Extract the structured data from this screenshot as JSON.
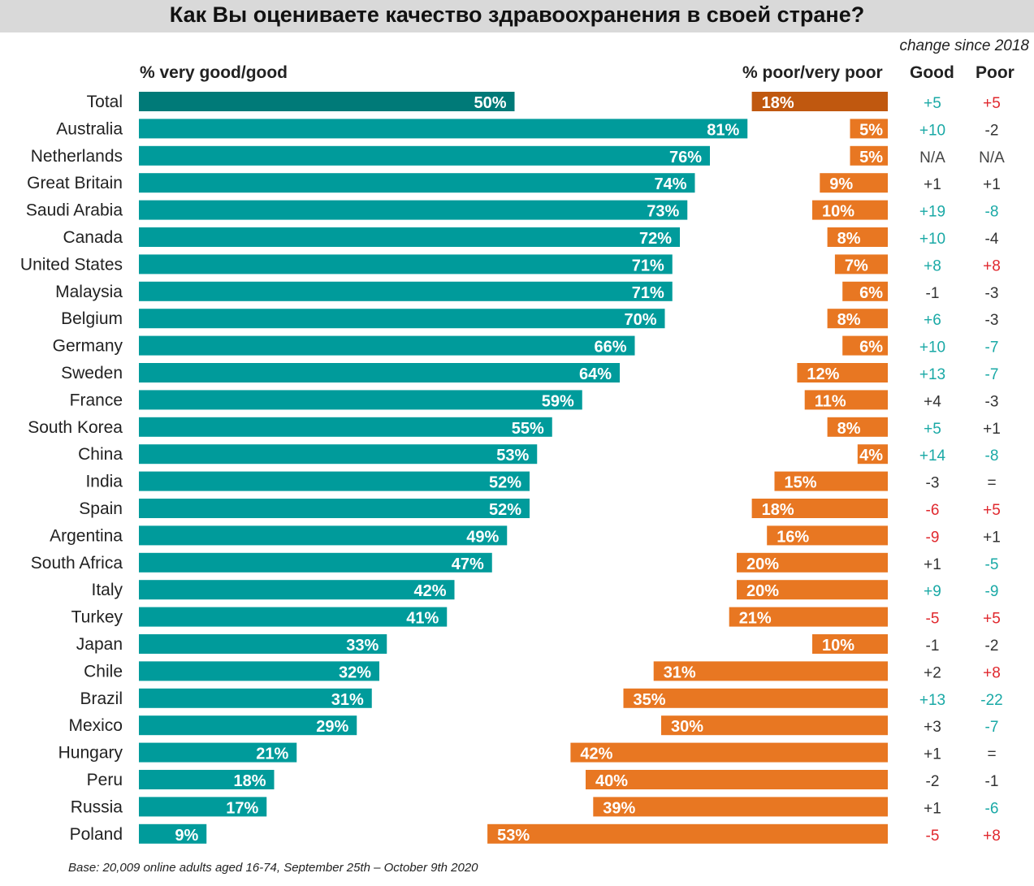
{
  "title": "Как Вы оцениваете качество здравоохранения в своей стране?",
  "change_label": "change since 2018",
  "headers": {
    "good_bar": "% very good/good",
    "poor_bar": "% poor/very poor",
    "good_change": "Good",
    "poor_change": "Poor"
  },
  "footnote": "Base: 20,009 online adults aged 16-74, September 25th – October 9th 2020",
  "colors": {
    "good": "#009b9b",
    "good_total": "#007a78",
    "poor": "#e87722",
    "poor_total": "#c0580f",
    "change_up": "#1aa9a6",
    "change_down": "#e0282e",
    "change_neutral": "#333333",
    "change_na": "#444444"
  },
  "chart_data": {
    "type": "bar",
    "categories": [
      "Total",
      "Australia",
      "Netherlands",
      "Great Britain",
      "Saudi Arabia",
      "Canada",
      "United States",
      "Malaysia",
      "Belgium",
      "Germany",
      "Sweden",
      "France",
      "South Korea",
      "China",
      "India",
      "Spain",
      "Argentina",
      "South Africa",
      "Italy",
      "Turkey",
      "Japan",
      "Chile",
      "Brazil",
      "Mexico",
      "Hungary",
      "Peru",
      "Russia",
      "Poland"
    ],
    "series": [
      {
        "name": "% very good/good",
        "values": [
          50,
          81,
          76,
          74,
          73,
          72,
          71,
          71,
          70,
          66,
          64,
          59,
          55,
          53,
          52,
          52,
          49,
          47,
          42,
          41,
          33,
          32,
          31,
          29,
          21,
          18,
          17,
          9
        ]
      },
      {
        "name": "% poor/very poor",
        "values": [
          18,
          5,
          5,
          9,
          10,
          8,
          7,
          6,
          8,
          6,
          12,
          11,
          8,
          4,
          15,
          18,
          16,
          20,
          20,
          21,
          10,
          31,
          35,
          30,
          42,
          40,
          39,
          53
        ]
      }
    ],
    "change_since_2018": {
      "good": [
        "+5",
        "+10",
        "N/A",
        "+1",
        "+19",
        "+10",
        "+8",
        "-1",
        "+6",
        "+10",
        "+13",
        "+4",
        "+5",
        "+14",
        "-3",
        "-6",
        "-9",
        "+1",
        "+9",
        "-5",
        "-1",
        "+2",
        "+13",
        "+3",
        "+1",
        "-2",
        "+1",
        "-5"
      ],
      "poor": [
        "+5",
        "-2",
        "N/A",
        "+1",
        "-8",
        "-4",
        "+8",
        "-3",
        "-3",
        "-7",
        "-7",
        "-3",
        "+1",
        "-8",
        "=",
        "+5",
        "+1",
        "-5",
        "-9",
        "+5",
        "-2",
        "+8",
        "-22",
        "-7",
        "=",
        "-1",
        "-6",
        "+8"
      ],
      "good_color_class": [
        "up",
        "up",
        "na",
        "neutral",
        "up",
        "up",
        "up",
        "neutral",
        "up",
        "up",
        "up",
        "neutral",
        "up",
        "up",
        "neutral",
        "down",
        "down",
        "neutral",
        "up",
        "down",
        "neutral",
        "neutral",
        "up",
        "neutral",
        "neutral",
        "neutral",
        "neutral",
        "down"
      ],
      "poor_color_class": [
        "down",
        "neutral",
        "na",
        "neutral",
        "up",
        "neutral",
        "down",
        "neutral",
        "neutral",
        "up",
        "up",
        "neutral",
        "neutral",
        "up",
        "neutral",
        "down",
        "neutral",
        "up",
        "up",
        "down",
        "neutral",
        "down",
        "up",
        "up",
        "neutral",
        "neutral",
        "up",
        "down"
      ]
    }
  }
}
